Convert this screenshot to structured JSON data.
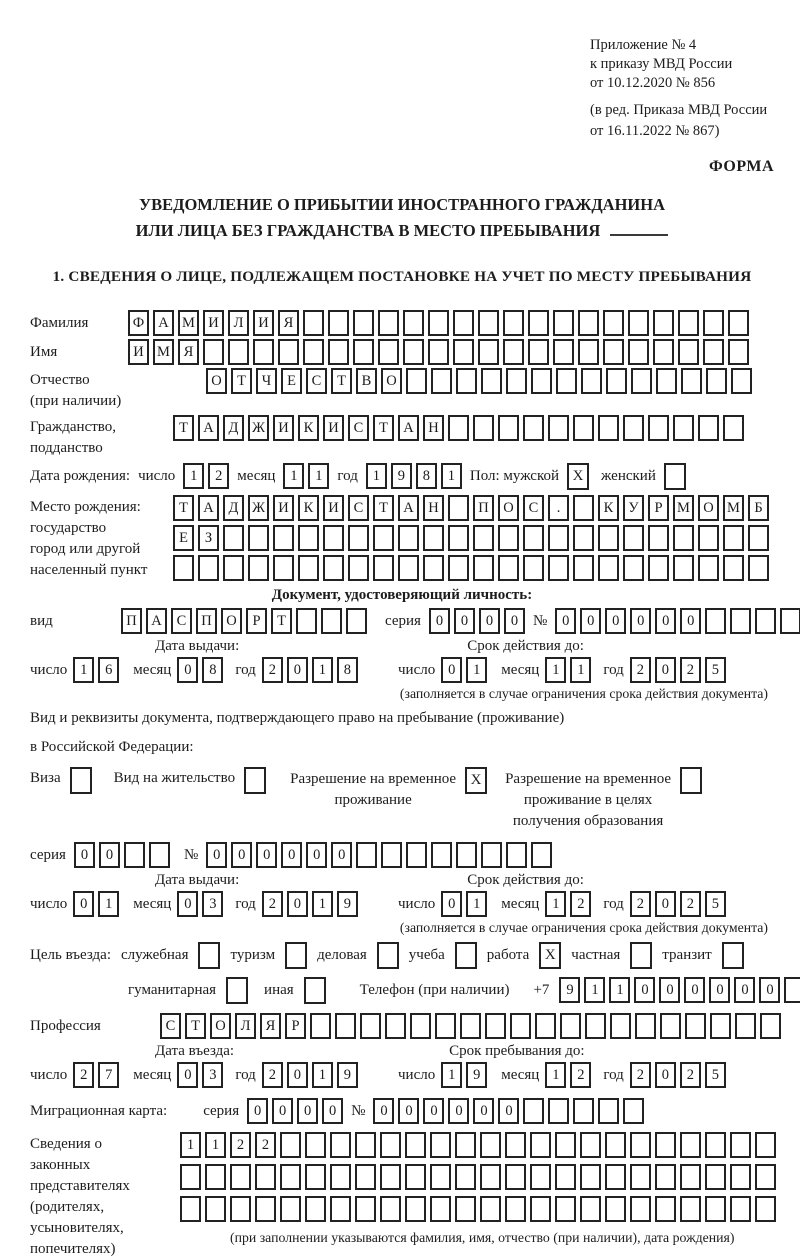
{
  "header": {
    "lines": [
      "Приложение № 4",
      "к приказу МВД России",
      "от 10.12.2020 № 856"
    ],
    "amendment": "(в ред. Приказа МВД России\nот 16.11.2022 № 867)",
    "form_label": "ФОРМА"
  },
  "title": {
    "line1": "УВЕДОМЛЕНИЕ О ПРИБЫТИИ ИНОСТРАННОГО ГРАЖДАНИНА",
    "line2": "ИЛИ ЛИЦА БЕЗ ГРАЖДАНСТВА В МЕСТО ПРЕБЫВАНИЯ"
  },
  "section1_title": "1. СВЕДЕНИЯ О ЛИЦЕ, ПОДЛЕЖАЩЕМ ПОСТАНОВКЕ НА УЧЕТ ПО МЕСТУ ПРЕБЫВАНИЯ",
  "labels": {
    "day": "число",
    "month": "месяц",
    "year": "год",
    "series": "серия",
    "number": "№",
    "issue": "Дата выдачи:",
    "valid": "Срок действия до:",
    "restriction_note": "(заполняется в случае ограничения срока действия документа)"
  },
  "person": {
    "surname_label": "Фамилия",
    "surname": {
      "value": "ФАМИЛИЯ",
      "len": 25
    },
    "name_label": "Имя",
    "name": {
      "value": "ИМЯ",
      "len": 25
    },
    "patronymic_label": "Отчество\n(при наличии)",
    "patronymic": {
      "value": "ОТЧЕСТВО",
      "len": 22
    },
    "citizenship_label": "Гражданство,\nподданство",
    "citizenship": {
      "value": "ТАДЖИКИСТАН",
      "len": 23
    },
    "birth_date_label": "Дата рождения:",
    "birth": {
      "day": {
        "value": "12"
      },
      "month": {
        "value": "11"
      },
      "year": {
        "value": "1981"
      }
    },
    "sex_label": "Пол: мужской",
    "sex_male": "X",
    "sex_female_label": "женский",
    "sex_female": "",
    "birth_place_label": "Место рождения:\nгосударство\nгород или другой\nнаселенный пункт",
    "birth_place_rows": [
      {
        "value": "ТАДЖИКИСТАН ПОС. КУРМОМБ",
        "len": 24
      },
      {
        "value": "ЕЗ",
        "len": 24
      },
      {
        "value": "",
        "len": 24
      }
    ]
  },
  "identity_doc": {
    "section_title": "Документ, удостоверяющий личность:",
    "kind_label": "вид",
    "kind": {
      "value": "ПАСПОРТ",
      "len": 10
    },
    "series": {
      "value": "0000",
      "len": 4
    },
    "number": {
      "value": "000000",
      "len": 11
    },
    "issue": {
      "day": {
        "value": "16"
      },
      "month": {
        "value": "08"
      },
      "year": {
        "value": "2018"
      }
    },
    "valid": {
      "day": {
        "value": "01"
      },
      "month": {
        "value": "11"
      },
      "year": {
        "value": "2025"
      }
    }
  },
  "residence_doc": {
    "intro1": "Вид и реквизиты документа, подтверждающего право на пребывание (проживание)",
    "intro2": "в Российской Федерации:",
    "options": [
      {
        "label": "Виза",
        "checked": ""
      },
      {
        "label": "Вид на жительство",
        "checked": ""
      },
      {
        "label": "Разрешение на временное\nпроживание",
        "checked": "X"
      },
      {
        "label": "Разрешение на временное\nпроживание в целях\nполучения образования",
        "checked": ""
      }
    ],
    "series": {
      "value": "00",
      "len": 4
    },
    "number": {
      "value": "000000",
      "len": 14
    },
    "issue": {
      "day": {
        "value": "01"
      },
      "month": {
        "value": "03"
      },
      "year": {
        "value": "2019"
      }
    },
    "valid": {
      "day": {
        "value": "01"
      },
      "month": {
        "value": "12"
      },
      "year": {
        "value": "2025"
      }
    }
  },
  "purpose": {
    "label": "Цель въезда:",
    "options": [
      {
        "label": "служебная",
        "checked": ""
      },
      {
        "label": "туризм",
        "checked": ""
      },
      {
        "label": "деловая",
        "checked": ""
      },
      {
        "label": "учеба",
        "checked": ""
      },
      {
        "label": "работа",
        "checked": "X"
      },
      {
        "label": "частная",
        "checked": ""
      },
      {
        "label": "транзит",
        "checked": ""
      },
      {
        "label": "гуманитарная",
        "checked": ""
      },
      {
        "label": "иная",
        "checked": ""
      }
    ]
  },
  "phone": {
    "label": "Телефон (при наличии)",
    "prefix": "+7",
    "number": {
      "value": "911000000",
      "len": 10
    }
  },
  "profession": {
    "label": "Профессия",
    "value": {
      "value": "СТОЛЯР",
      "len": 25
    }
  },
  "entry": {
    "issue_title": "Дата въезда:",
    "valid_title": "Срок пребывания до:",
    "issue": {
      "day": {
        "value": "27"
      },
      "month": {
        "value": "03"
      },
      "year": {
        "value": "2019"
      }
    },
    "valid": {
      "day": {
        "value": "19"
      },
      "month": {
        "value": "12"
      },
      "year": {
        "value": "2025"
      }
    }
  },
  "migration_card": {
    "label": "Миграционная карта:",
    "series": {
      "value": "0000",
      "len": 4
    },
    "number": {
      "value": "000000",
      "len": 11
    }
  },
  "legal_reps": {
    "label": "Сведения о\nзаконных\nпредставителях\n(родителях,\nусыновителях,\nпопечителях)",
    "rows": [
      {
        "value": "1122",
        "len": 24
      },
      {
        "value": "",
        "len": 24
      },
      {
        "value": "",
        "len": 24
      }
    ],
    "note": "(при заполнении указываются фамилия, имя, отчество (при наличии), дата рождения)"
  }
}
